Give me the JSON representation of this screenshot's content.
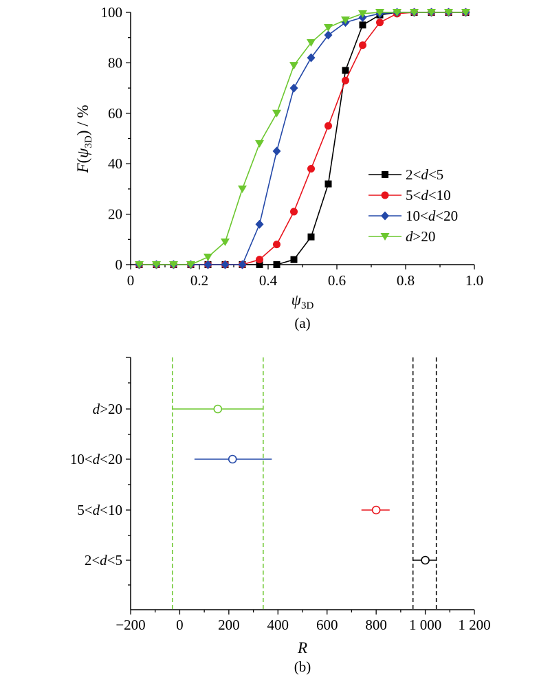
{
  "chart_data": [
    {
      "type": "line",
      "panel_label": "(a)",
      "xlabel": "ψ3D",
      "ylabel": "F(ψ3D) / %",
      "xlim": [
        0,
        1.0
      ],
      "ylim": [
        0,
        100
      ],
      "xticks": [
        "0",
        "0.2",
        "0.4",
        "0.6",
        "0.8",
        "1.0"
      ],
      "yticks": [
        "0",
        "20",
        "40",
        "60",
        "80",
        "100"
      ],
      "legend_position": "center-right",
      "series": [
        {
          "name": "2<d<5",
          "color": "#000000",
          "marker": "square",
          "x": [
            0.025,
            0.075,
            0.125,
            0.175,
            0.225,
            0.275,
            0.325,
            0.375,
            0.425,
            0.475,
            0.525,
            0.575,
            0.625,
            0.675,
            0.725,
            0.775,
            0.825,
            0.875,
            0.925,
            0.975
          ],
          "y": [
            0,
            0,
            0,
            0,
            0,
            0,
            0,
            0,
            0,
            2,
            11,
            32,
            77,
            95,
            99,
            100,
            100,
            100,
            100,
            100
          ]
        },
        {
          "name": "5<d<10",
          "color": "#e8141c",
          "marker": "circle",
          "x": [
            0.025,
            0.075,
            0.125,
            0.175,
            0.225,
            0.275,
            0.325,
            0.375,
            0.425,
            0.475,
            0.525,
            0.575,
            0.625,
            0.675,
            0.725,
            0.775,
            0.825,
            0.875,
            0.925,
            0.975
          ],
          "y": [
            0,
            0,
            0,
            0,
            0,
            0,
            0,
            2,
            8,
            21,
            38,
            55,
            73,
            87,
            96,
            99.5,
            100,
            100,
            100,
            100
          ]
        },
        {
          "name": "10<d<20",
          "color": "#2348a8",
          "marker": "diamond",
          "x": [
            0.025,
            0.075,
            0.125,
            0.175,
            0.225,
            0.275,
            0.325,
            0.375,
            0.425,
            0.475,
            0.525,
            0.575,
            0.625,
            0.675,
            0.725,
            0.775,
            0.825,
            0.875,
            0.925,
            0.975
          ],
          "y": [
            0,
            0,
            0,
            0,
            0,
            0,
            0,
            16,
            45,
            70,
            82,
            91,
            96,
            98,
            99.5,
            100,
            100,
            100,
            100,
            100
          ]
        },
        {
          "name": "d>20",
          "color": "#6cc72f",
          "marker": "triangle-down",
          "x": [
            0.025,
            0.075,
            0.125,
            0.175,
            0.225,
            0.275,
            0.325,
            0.375,
            0.425,
            0.475,
            0.525,
            0.575,
            0.625,
            0.675,
            0.725,
            0.775,
            0.825,
            0.875,
            0.925,
            0.975
          ],
          "y": [
            0,
            0,
            0,
            0,
            3,
            9,
            30,
            48,
            60,
            79,
            88,
            94,
            97,
            99.5,
            100,
            100,
            100,
            100,
            100,
            100
          ]
        }
      ]
    },
    {
      "type": "errorbar",
      "panel_label": "(b)",
      "xlabel": "R",
      "xlim": [
        -200,
        1200
      ],
      "xticks": [
        "−200",
        "0",
        "200",
        "400",
        "600",
        "800",
        "1 000",
        "1 200"
      ],
      "categories": [
        "d>20",
        "10<d<20",
        "5<d<10",
        "2<d<5"
      ],
      "points": [
        {
          "category": "d>20",
          "center": 155,
          "low": -30,
          "high": 340,
          "color": "#6cc72f"
        },
        {
          "category": "10<d<20",
          "center": 215,
          "low": 60,
          "high": 375,
          "color": "#2348a8"
        },
        {
          "category": "5<d<10",
          "center": 800,
          "low": 740,
          "high": 855,
          "color": "#e8141c"
        },
        {
          "category": "2<d<5",
          "center": 1000,
          "low": 950,
          "high": 1045,
          "color": "#000000"
        }
      ],
      "reference_lines": [
        {
          "x": -30,
          "color": "#6cc72f",
          "style": "dashed"
        },
        {
          "x": 340,
          "color": "#6cc72f",
          "style": "dashed"
        },
        {
          "x": 950,
          "color": "#000000",
          "style": "dashed"
        },
        {
          "x": 1045,
          "color": "#000000",
          "style": "dashed"
        }
      ]
    }
  ]
}
